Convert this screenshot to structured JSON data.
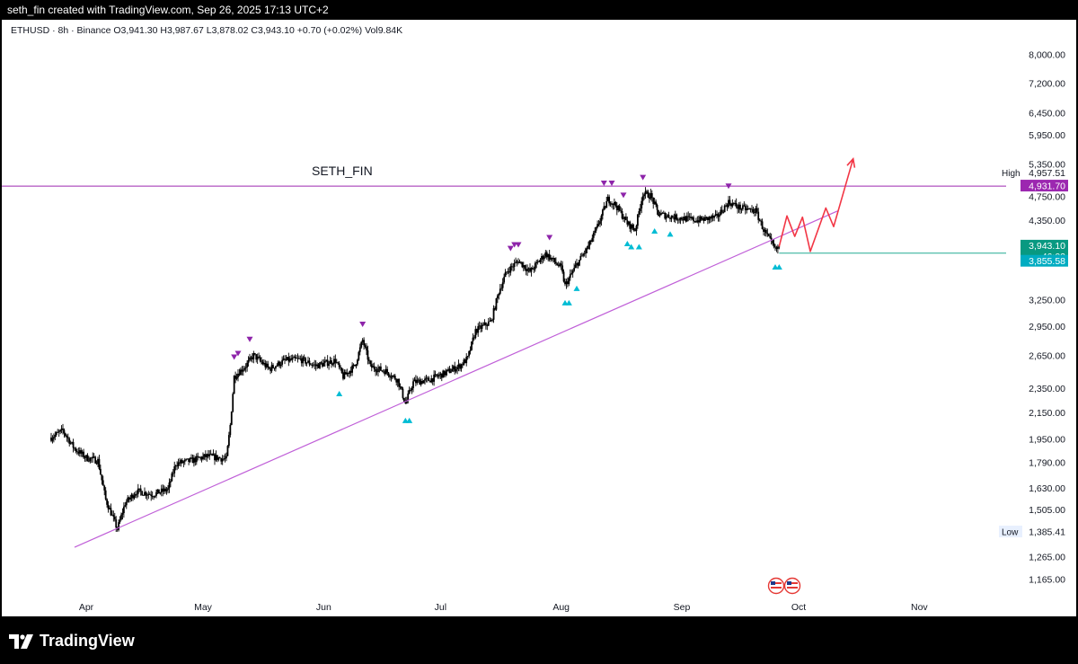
{
  "header": {
    "text": "seth_fin created with TradingView.com, Sep 26, 2025 17:13 UTC+2"
  },
  "legend": {
    "symbol": "ETHUSD · 8h · Binance",
    "open": "O3,941.30",
    "high": "H3,987.67",
    "low": "L3,878.02",
    "close": "C3,943.10",
    "change": "+0.70 (+0.02%)",
    "volume": "Vol9.84K"
  },
  "annotation": {
    "label": "SETH_FIN"
  },
  "price_scale": {
    "ticks": [
      "8,000.00",
      "7,200.00",
      "6,450.00",
      "5,950.00",
      "5,350.00",
      "4,750.00",
      "4,350.00",
      "3,950.00",
      "3,250.00",
      "2,950.00",
      "2,650.00",
      "2,350.00",
      "2,150.00",
      "1,950.00",
      "1,790.00",
      "1,630.00",
      "1,505.00",
      "1,265.00",
      "1,165.00"
    ],
    "high_label": "High",
    "high_value": "4,957.51",
    "resistance_value": "4,931.70",
    "last_price": "3,943.10",
    "countdown": "46:02",
    "support_value": "3,855.58",
    "low_label": "Low",
    "low_value": "1,385.41"
  },
  "time_scale": {
    "labels": [
      "Apr",
      "May",
      "Jun",
      "Jul",
      "Aug",
      "Sep",
      "Oct",
      "Nov"
    ]
  },
  "footer": {
    "brand": "TradingView"
  },
  "colors": {
    "background": "#ffffff",
    "resistance": "#9c27b0",
    "trendline": "#c060d8",
    "projection": "#f23645",
    "support": "#22ab94",
    "marker_up": "#00bcd4",
    "marker_down": "#8e24aa",
    "candles": "#000000"
  },
  "chart_data": {
    "type": "candlestick",
    "symbol": "ETHUSD",
    "interval": "8h",
    "exchange": "Binance",
    "y_scale": "log",
    "ylim": [
      1100,
      8500
    ],
    "price_path": [
      [
        "2025-03-23",
        1960
      ],
      [
        "2025-03-26",
        2010
      ],
      [
        "2025-03-29",
        1880
      ],
      [
        "2025-04-01",
        1820
      ],
      [
        "2025-04-04",
        1800
      ],
      [
        "2025-04-06",
        1560
      ],
      [
        "2025-04-09",
        1400
      ],
      [
        "2025-04-11",
        1540
      ],
      [
        "2025-04-14",
        1610
      ],
      [
        "2025-04-18",
        1590
      ],
      [
        "2025-04-22",
        1620
      ],
      [
        "2025-04-24",
        1780
      ],
      [
        "2025-04-28",
        1800
      ],
      [
        "2025-05-02",
        1830
      ],
      [
        "2025-05-07",
        1810
      ],
      [
        "2025-05-08",
        2050
      ],
      [
        "2025-05-09",
        2450
      ],
      [
        "2025-05-12",
        2550
      ],
      [
        "2025-05-14",
        2650
      ],
      [
        "2025-05-18",
        2520
      ],
      [
        "2025-05-22",
        2600
      ],
      [
        "2025-05-26",
        2610
      ],
      [
        "2025-05-30",
        2550
      ],
      [
        "2025-06-04",
        2600
      ],
      [
        "2025-06-06",
        2450
      ],
      [
        "2025-06-09",
        2550
      ],
      [
        "2025-06-11",
        2800
      ],
      [
        "2025-06-13",
        2540
      ],
      [
        "2025-06-17",
        2500
      ],
      [
        "2025-06-20",
        2420
      ],
      [
        "2025-06-22",
        2220
      ],
      [
        "2025-06-24",
        2400
      ],
      [
        "2025-06-28",
        2420
      ],
      [
        "2025-07-02",
        2480
      ],
      [
        "2025-07-06",
        2550
      ],
      [
        "2025-07-08",
        2620
      ],
      [
        "2025-07-10",
        2900
      ],
      [
        "2025-07-14",
        3000
      ],
      [
        "2025-07-16",
        3350
      ],
      [
        "2025-07-18",
        3600
      ],
      [
        "2025-07-21",
        3750
      ],
      [
        "2025-07-24",
        3600
      ],
      [
        "2025-07-28",
        3850
      ],
      [
        "2025-08-01",
        3650
      ],
      [
        "2025-08-02",
        3420
      ],
      [
        "2025-08-05",
        3700
      ],
      [
        "2025-08-08",
        3950
      ],
      [
        "2025-08-10",
        4200
      ],
      [
        "2025-08-13",
        4700
      ],
      [
        "2025-08-15",
        4600
      ],
      [
        "2025-08-18",
        4300
      ],
      [
        "2025-08-20",
        4200
      ],
      [
        "2025-08-22",
        4800
      ],
      [
        "2025-08-24",
        4760
      ],
      [
        "2025-08-26",
        4450
      ],
      [
        "2025-08-30",
        4400
      ],
      [
        "2025-09-05",
        4350
      ],
      [
        "2025-09-10",
        4400
      ],
      [
        "2025-09-13",
        4650
      ],
      [
        "2025-09-16",
        4550
      ],
      [
        "2025-09-20",
        4500
      ],
      [
        "2025-09-22",
        4200
      ],
      [
        "2025-09-25",
        3900
      ],
      [
        "2025-09-26",
        3943.1
      ]
    ],
    "levels": {
      "resistance": 4931.7,
      "support": 3855.58,
      "high": 4957.51,
      "low": 1385.41,
      "last": 3943.1
    },
    "trendline": [
      [
        "2025-03-29",
        1310
      ],
      [
        "2025-10-11",
        4500
      ]
    ],
    "projection": [
      [
        "2025-09-26",
        3950
      ],
      [
        "2025-09-28",
        4420
      ],
      [
        "2025-09-30",
        4100
      ],
      [
        "2025-10-02",
        4400
      ],
      [
        "2025-10-04",
        3880
      ],
      [
        "2025-10-08",
        4550
      ],
      [
        "2025-10-10",
        4250
      ],
      [
        "2025-10-15",
        5450
      ]
    ],
    "markers_down": [
      "2025-05-09",
      "2025-05-10",
      "2025-05-13",
      "2025-06-11",
      "2025-07-19",
      "2025-07-20",
      "2025-07-21",
      "2025-07-29",
      "2025-08-12",
      "2025-08-14",
      "2025-08-17",
      "2025-08-22",
      "2025-09-13"
    ],
    "markers_up": [
      "2025-06-05",
      "2025-06-22",
      "2025-06-23",
      "2025-08-02",
      "2025-08-03",
      "2025-08-05",
      "2025-08-18",
      "2025-08-19",
      "2025-08-21",
      "2025-08-25",
      "2025-08-29",
      "2025-09-25",
      "2025-09-26"
    ]
  }
}
